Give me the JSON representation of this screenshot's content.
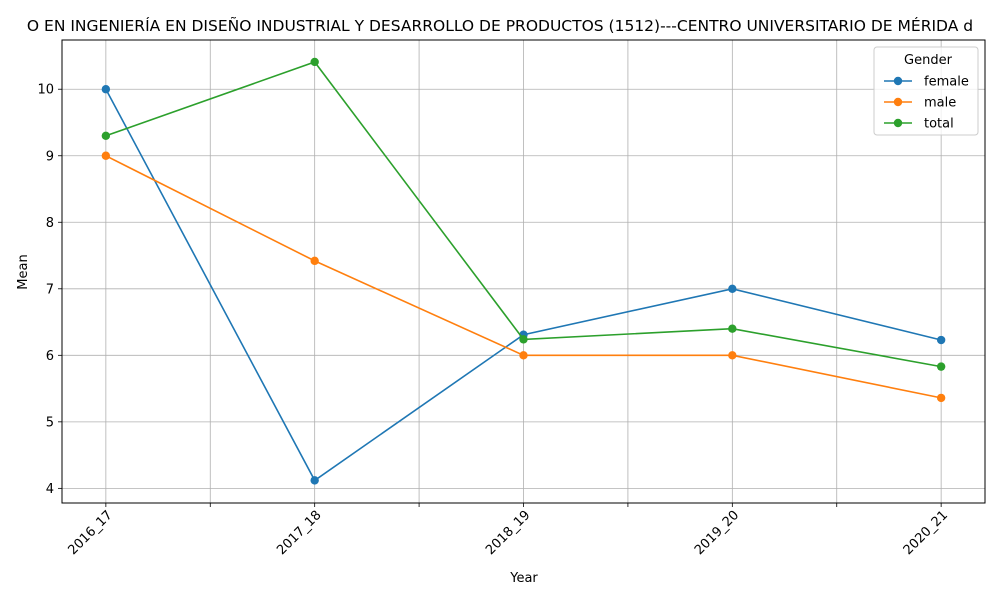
{
  "chart_data": {
    "type": "line",
    "title": "O EN INGENIERÍA EN DISEÑO INDUSTRIAL Y DESARROLLO DE PRODUCTOS (1512)---CENTRO UNIVERSITARIO DE MÉRIDA d",
    "xlabel": "Year",
    "ylabel": "Mean",
    "categories": [
      "2016_17",
      "2017_18",
      "2018_19",
      "2019_20",
      "2020_21"
    ],
    "series": [
      {
        "name": "female",
        "color": "#1f77b4",
        "values": [
          10.0,
          4.12,
          6.31,
          7.0,
          6.23
        ]
      },
      {
        "name": "male",
        "color": "#ff7f0e",
        "values": [
          9.0,
          7.42,
          6.0,
          6.0,
          5.36
        ]
      },
      {
        "name": "total",
        "color": "#2ca02c",
        "values": [
          9.3,
          10.41,
          6.24,
          6.4,
          5.83
        ]
      }
    ],
    "yticks": [
      "4",
      "5",
      "6",
      "7",
      "8",
      "9",
      "10"
    ],
    "ylim": [
      3.78,
      10.74
    ],
    "xlim": [
      -0.21,
      4.21
    ],
    "grid": true,
    "legend": {
      "title": "Gender",
      "placement": "top-right"
    }
  }
}
